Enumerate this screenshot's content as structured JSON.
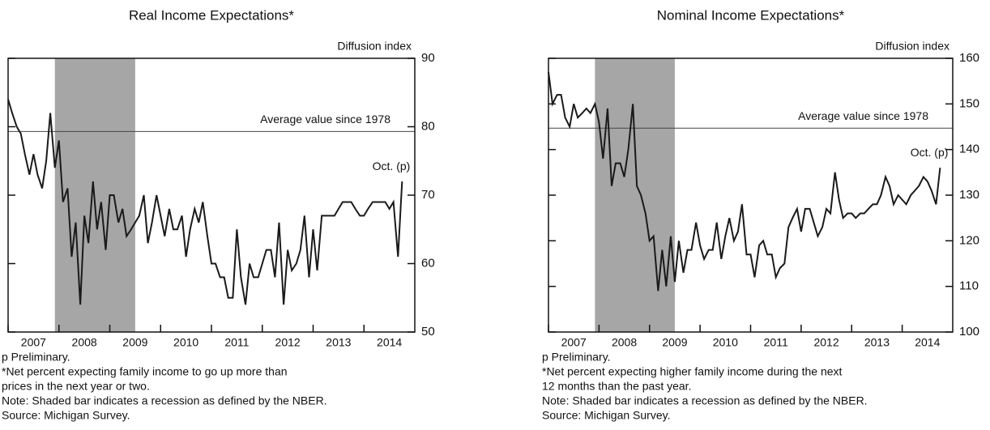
{
  "chart_data": [
    {
      "type": "line",
      "title": "Real Income Expectations*",
      "y_label": "Diffusion index",
      "xlim": [
        2007,
        2015
      ],
      "xticks": [
        2007,
        2008,
        2009,
        2010,
        2011,
        2012,
        2013,
        2014
      ],
      "ylim": [
        50,
        90
      ],
      "yticks": [
        50,
        60,
        70,
        80,
        90
      ],
      "recession": [
        2007.92,
        2009.5
      ],
      "average": {
        "value": 79.3,
        "label": "Average value since 1978"
      },
      "end_label": "Oct. (p)",
      "notes": [
        "p Preliminary.",
        "*Net percent expecting family income to go up more than",
        "prices in the next year or two.",
        "Note: Shaded bar indicates a recession as defined by the NBER.",
        "Source: Michigan Survey."
      ],
      "x": [
        2007,
        2007.08,
        2007.17,
        2007.25,
        2007.33,
        2007.42,
        2007.5,
        2007.58,
        2007.67,
        2007.75,
        2007.83,
        2007.92,
        2008,
        2008.08,
        2008.17,
        2008.25,
        2008.33,
        2008.42,
        2008.5,
        2008.58,
        2008.67,
        2008.75,
        2008.83,
        2008.92,
        2009,
        2009.08,
        2009.17,
        2009.25,
        2009.33,
        2009.42,
        2009.5,
        2009.58,
        2009.67,
        2009.75,
        2009.83,
        2009.92,
        2010,
        2010.08,
        2010.17,
        2010.25,
        2010.33,
        2010.42,
        2010.5,
        2010.58,
        2010.67,
        2010.75,
        2010.83,
        2010.92,
        2011,
        2011.08,
        2011.17,
        2011.25,
        2011.33,
        2011.42,
        2011.5,
        2011.58,
        2011.67,
        2011.75,
        2011.83,
        2011.92,
        2012,
        2012.08,
        2012.17,
        2012.25,
        2012.33,
        2012.42,
        2012.5,
        2012.58,
        2012.67,
        2012.75,
        2012.83,
        2012.92,
        2013,
        2013.08,
        2013.17,
        2013.25,
        2013.33,
        2013.42,
        2013.5,
        2013.58,
        2013.67,
        2013.75,
        2013.83,
        2013.92,
        2014,
        2014.08,
        2014.17,
        2014.25,
        2014.33,
        2014.42,
        2014.5,
        2014.58,
        2014.67,
        2014.75
      ],
      "series": [
        {
          "color": "#1a1a1a",
          "values": [
            84,
            82,
            80,
            79,
            76,
            73,
            76,
            73,
            71,
            75,
            82,
            74,
            78,
            69,
            71,
            61,
            66,
            54,
            67,
            63,
            72,
            65,
            69,
            62,
            70,
            70,
            66,
            68,
            64,
            65,
            66,
            67,
            70,
            63,
            66,
            70,
            67,
            64,
            68,
            65,
            65,
            67,
            61,
            65,
            68,
            66,
            69,
            64,
            60,
            60,
            58,
            58,
            55,
            55,
            65,
            58,
            54,
            60,
            58,
            58,
            60,
            62,
            62,
            58,
            66,
            54,
            62,
            59,
            60,
            62,
            67,
            58,
            65,
            59,
            67,
            67,
            67,
            67,
            68,
            69,
            69,
            69,
            68,
            67,
            67,
            68,
            69,
            69,
            69,
            69,
            68,
            69,
            61,
            72
          ]
        }
      ]
    },
    {
      "type": "line",
      "title": "Nominal Income Expectations*",
      "y_label": "Diffusion index",
      "xlim": [
        2007,
        2015
      ],
      "xticks": [
        2007,
        2008,
        2009,
        2010,
        2011,
        2012,
        2013,
        2014
      ],
      "ylim": [
        100,
        160
      ],
      "yticks": [
        100,
        110,
        120,
        130,
        140,
        150,
        160
      ],
      "recession": [
        2007.92,
        2009.5
      ],
      "average": {
        "value": 144.7,
        "label": "Average value since 1978"
      },
      "end_label": "Oct. (p)",
      "notes": [
        "p Preliminary.",
        "*Net percent expecting higher family income during the next",
        "12 months than the past year.",
        "Note: Shaded bar indicates a recession as defined by the NBER.",
        "Source: Michigan Survey."
      ],
      "x": [
        2007,
        2007.08,
        2007.17,
        2007.25,
        2007.33,
        2007.42,
        2007.5,
        2007.58,
        2007.67,
        2007.75,
        2007.83,
        2007.92,
        2008,
        2008.08,
        2008.17,
        2008.25,
        2008.33,
        2008.42,
        2008.5,
        2008.58,
        2008.67,
        2008.75,
        2008.83,
        2008.92,
        2009,
        2009.08,
        2009.17,
        2009.25,
        2009.33,
        2009.42,
        2009.5,
        2009.58,
        2009.67,
        2009.75,
        2009.83,
        2009.92,
        2010,
        2010.08,
        2010.17,
        2010.25,
        2010.33,
        2010.42,
        2010.5,
        2010.58,
        2010.67,
        2010.75,
        2010.83,
        2010.92,
        2011,
        2011.08,
        2011.17,
        2011.25,
        2011.33,
        2011.42,
        2011.5,
        2011.58,
        2011.67,
        2011.75,
        2011.83,
        2011.92,
        2012,
        2012.08,
        2012.17,
        2012.25,
        2012.33,
        2012.42,
        2012.5,
        2012.58,
        2012.67,
        2012.75,
        2012.83,
        2012.92,
        2013,
        2013.08,
        2013.17,
        2013.25,
        2013.33,
        2013.42,
        2013.5,
        2013.58,
        2013.67,
        2013.75,
        2013.83,
        2013.92,
        2014,
        2014.08,
        2014.17,
        2014.25,
        2014.33,
        2014.42,
        2014.5,
        2014.58,
        2014.67,
        2014.75
      ],
      "series": [
        {
          "color": "#1a1a1a",
          "values": [
            157,
            150,
            152,
            152,
            147,
            145,
            150,
            147,
            148,
            149,
            148,
            150,
            146,
            138,
            149,
            132,
            137,
            137,
            134,
            140,
            150,
            132,
            130,
            126,
            120,
            121,
            109,
            118,
            110,
            121,
            111,
            120,
            113,
            118,
            118,
            124,
            119,
            116,
            118,
            118,
            124,
            116,
            121,
            125,
            120,
            122,
            128,
            117,
            117,
            112,
            119,
            120,
            117,
            117,
            112,
            114,
            115,
            123,
            125,
            127,
            122,
            127,
            127,
            124,
            121,
            123,
            127,
            126,
            135,
            129,
            125,
            126,
            126,
            125,
            126,
            126,
            127,
            128,
            128,
            130,
            134,
            132,
            128,
            130,
            129,
            128,
            130,
            131,
            132,
            134,
            133,
            131,
            128,
            136
          ]
        }
      ]
    }
  ]
}
